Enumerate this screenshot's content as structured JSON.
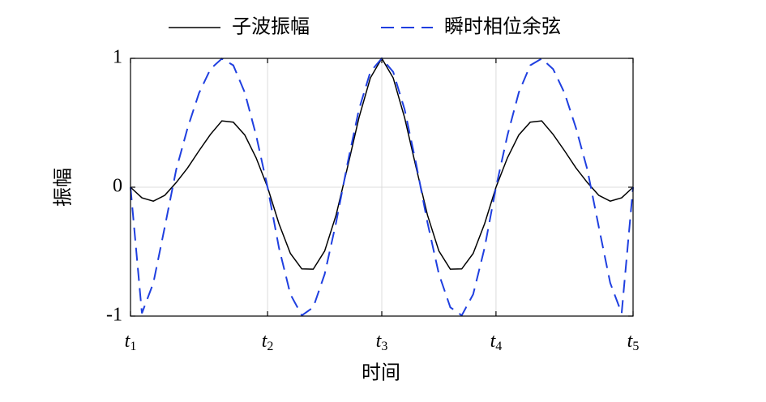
{
  "chart_data": {
    "type": "line",
    "xlabel": "时间",
    "ylabel": "振幅",
    "x": [
      -2.2,
      -2.1,
      -2.0,
      -1.9,
      -1.8,
      -1.7,
      -1.6,
      -1.5,
      -1.4,
      -1.3,
      -1.2,
      -1.1,
      -1.0,
      -0.9,
      -0.8,
      -0.7,
      -0.6,
      -0.5,
      -0.4,
      -0.3,
      -0.2,
      -0.1,
      0,
      0.1,
      0.2,
      0.3,
      0.4,
      0.5,
      0.6,
      0.7,
      0.8,
      0.9,
      1.0,
      1.1,
      1.2,
      1.3,
      1.4,
      1.5,
      1.6,
      1.7,
      1.8,
      1.9,
      2.0,
      2.1,
      2.2
    ],
    "series": [
      {
        "name": "子波振幅",
        "color": "#000000",
        "dash": false,
        "values": [
          0,
          -0.082,
          -0.108,
          -0.063,
          0.036,
          0.15,
          0.283,
          0.41,
          0.515,
          0.505,
          0.406,
          0.228,
          0,
          -0.284,
          -0.514,
          -0.634,
          -0.636,
          -0.495,
          -0.216,
          0.155,
          0.539,
          0.848,
          1,
          0.848,
          0.539,
          0.155,
          -0.216,
          -0.495,
          -0.636,
          -0.634,
          -0.514,
          -0.284,
          0,
          0.228,
          0.406,
          0.505,
          0.515,
          0.41,
          0.283,
          0.15,
          0.036,
          -0.063,
          -0.108,
          -0.082,
          0
        ]
      },
      {
        "name": "瞬时相位余弦",
        "color": "#1f3fe0",
        "dash": true,
        "values": [
          0,
          -0.978,
          -0.743,
          -0.309,
          0.136,
          0.46,
          0.731,
          0.917,
          0.998,
          0.946,
          0.736,
          0.402,
          0,
          -0.471,
          -0.831,
          -0.995,
          -0.932,
          -0.674,
          -0.274,
          0.184,
          0.603,
          0.895,
          1,
          0.895,
          0.603,
          0.184,
          -0.274,
          -0.674,
          -0.932,
          -0.995,
          -0.831,
          -0.471,
          0,
          0.402,
          0.736,
          0.946,
          0.998,
          0.917,
          0.731,
          0.46,
          0.136,
          -0.309,
          -0.743,
          -0.978,
          0
        ]
      }
    ],
    "xlim": [
      -2.2,
      2.2
    ],
    "xticks": [
      {
        "value": -2.2,
        "label": "t1"
      },
      {
        "value": -1,
        "label": "t2"
      },
      {
        "value": 0,
        "label": "t3"
      },
      {
        "value": 1,
        "label": "t4"
      },
      {
        "value": 2.2,
        "label": "t5"
      }
    ],
    "ylim": [
      -1,
      1
    ],
    "yticks": [
      -1,
      0,
      1
    ],
    "grid": true,
    "legend": "top"
  }
}
